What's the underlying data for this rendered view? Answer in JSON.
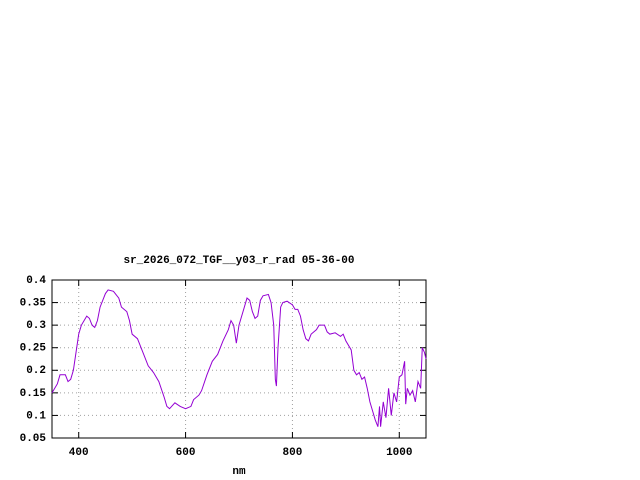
{
  "chart_data": {
    "type": "line",
    "title": "sr_2026_072_TGF__y03_r_rad 05-36-00",
    "xlabel": "nm",
    "color": "#9400d3",
    "grid": true,
    "xlim": [
      350,
      1050
    ],
    "xticks": [
      400,
      600,
      800,
      1000
    ],
    "ylim": [
      0.05,
      0.4
    ],
    "yticks": [
      0.05,
      0.1,
      0.15,
      0.2,
      0.25,
      0.3,
      0.35,
      0.4
    ],
    "x": [
      350,
      360,
      365,
      375,
      380,
      385,
      390,
      400,
      405,
      415,
      420,
      425,
      430,
      435,
      440,
      450,
      455,
      465,
      475,
      480,
      490,
      495,
      500,
      510,
      520,
      530,
      540,
      550,
      560,
      565,
      570,
      580,
      590,
      600,
      610,
      615,
      625,
      630,
      640,
      650,
      660,
      670,
      680,
      685,
      690,
      695,
      700,
      710,
      715,
      720,
      725,
      730,
      735,
      740,
      745,
      755,
      760,
      765,
      768,
      770,
      773,
      778,
      782,
      790,
      800,
      805,
      810,
      815,
      820,
      825,
      830,
      835,
      845,
      850,
      860,
      865,
      870,
      880,
      890,
      895,
      900,
      910,
      915,
      920,
      925,
      930,
      935,
      940,
      945,
      950,
      955,
      960,
      963,
      965,
      970,
      975,
      980,
      985,
      990,
      995,
      1000,
      1005,
      1010,
      1012,
      1015,
      1020,
      1025,
      1030,
      1035,
      1040,
      1043,
      1047,
      1050
    ],
    "values": [
      0.15,
      0.17,
      0.19,
      0.19,
      0.175,
      0.18,
      0.2,
      0.28,
      0.3,
      0.32,
      0.315,
      0.3,
      0.295,
      0.31,
      0.34,
      0.37,
      0.378,
      0.375,
      0.36,
      0.34,
      0.33,
      0.31,
      0.28,
      0.27,
      0.24,
      0.21,
      0.195,
      0.175,
      0.14,
      0.12,
      0.115,
      0.128,
      0.12,
      0.115,
      0.12,
      0.135,
      0.145,
      0.155,
      0.19,
      0.22,
      0.235,
      0.265,
      0.29,
      0.31,
      0.3,
      0.26,
      0.3,
      0.34,
      0.36,
      0.355,
      0.33,
      0.315,
      0.32,
      0.355,
      0.365,
      0.368,
      0.35,
      0.3,
      0.18,
      0.165,
      0.25,
      0.34,
      0.35,
      0.353,
      0.345,
      0.335,
      0.335,
      0.32,
      0.29,
      0.27,
      0.265,
      0.28,
      0.29,
      0.3,
      0.3,
      0.285,
      0.28,
      0.283,
      0.275,
      0.28,
      0.265,
      0.245,
      0.2,
      0.19,
      0.195,
      0.18,
      0.185,
      0.16,
      0.13,
      0.11,
      0.09,
      0.075,
      0.12,
      0.075,
      0.13,
      0.095,
      0.16,
      0.1,
      0.15,
      0.13,
      0.185,
      0.19,
      0.22,
      0.125,
      0.16,
      0.145,
      0.155,
      0.13,
      0.175,
      0.16,
      0.25,
      0.24,
      0.225
    ]
  }
}
